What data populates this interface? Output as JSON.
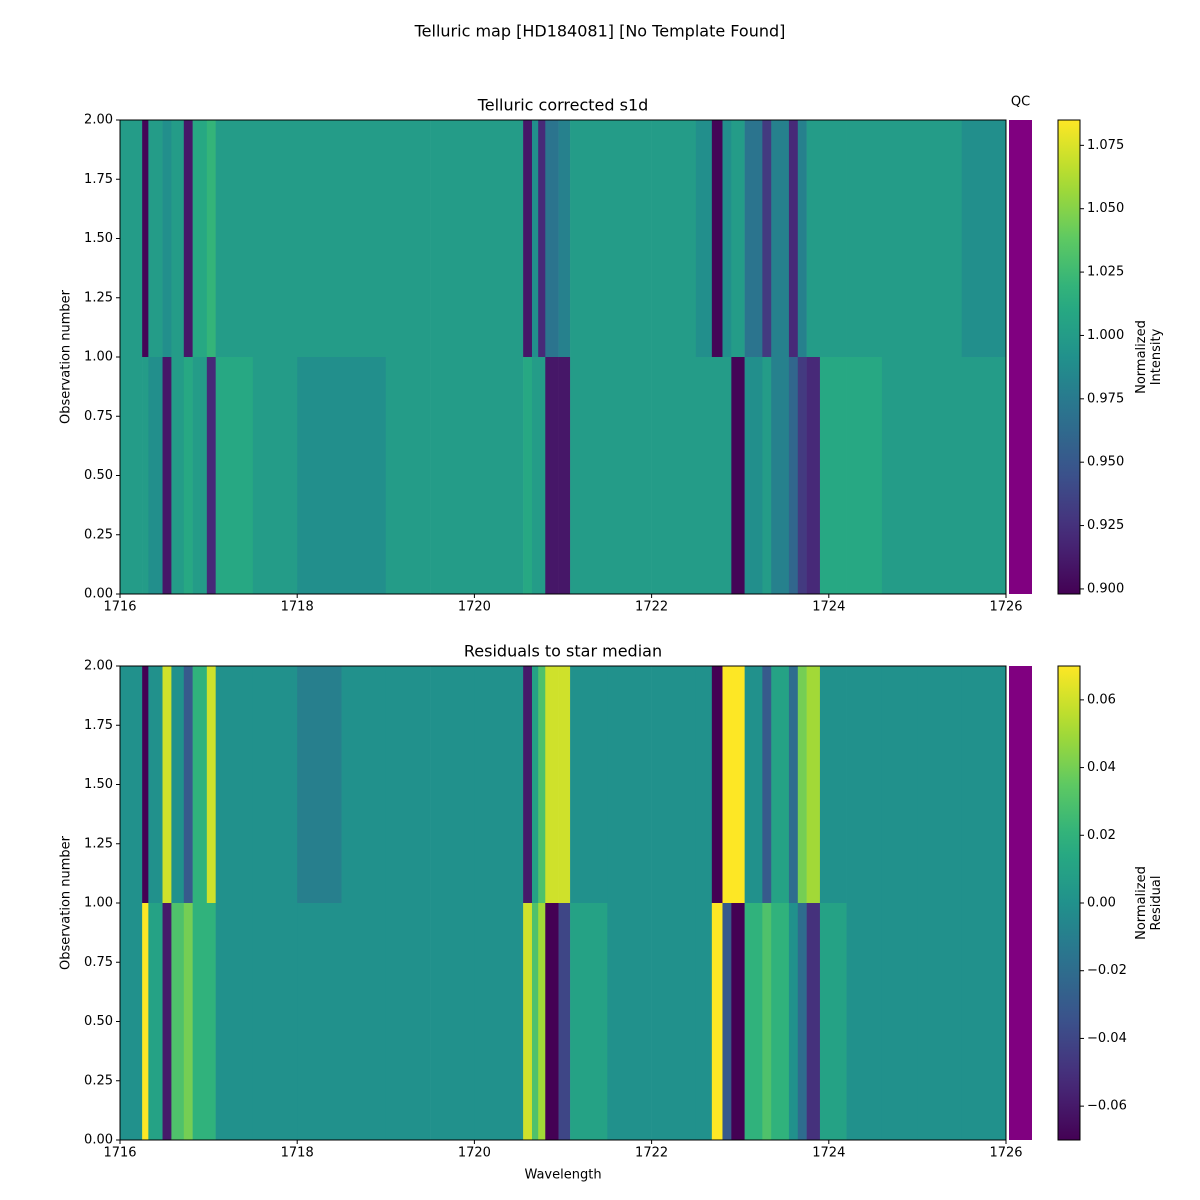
{
  "title": "Telluric map [HD184081] [No Template Found]",
  "chart_data": [
    {
      "type": "heatmap",
      "title": "Telluric corrected s1d",
      "ylabel": "Observation number",
      "qc_label": "QC",
      "qc_color": "#800080",
      "xlim": [
        1716,
        1726
      ],
      "xticks": [
        1716,
        1718,
        1720,
        1722,
        1724,
        1726
      ],
      "ylim": [
        0,
        2
      ],
      "yticks": [
        {
          "value": 0,
          "label": "0.00"
        },
        {
          "value": 0.25,
          "label": "0.25"
        },
        {
          "value": 0.5,
          "label": "0.50"
        },
        {
          "value": 0.75,
          "label": "0.75"
        },
        {
          "value": 1,
          "label": "1.00"
        },
        {
          "value": 1.25,
          "label": "1.25"
        },
        {
          "value": 1.5,
          "label": "1.50"
        },
        {
          "value": 1.75,
          "label": "1.75"
        },
        {
          "value": 2,
          "label": "2.00"
        }
      ],
      "xbins": [
        1716,
        1716.25,
        1716.32,
        1716.48,
        1716.58,
        1716.72,
        1716.82,
        1716.98,
        1717.08,
        1717.5,
        1718,
        1718.5,
        1719,
        1719.5,
        1720,
        1720.55,
        1720.65,
        1720.72,
        1720.8,
        1720.95,
        1721.08,
        1721.5,
        1722,
        1722.5,
        1722.68,
        1722.8,
        1722.9,
        1723.05,
        1723.25,
        1723.35,
        1723.55,
        1723.65,
        1723.75,
        1723.9,
        1724.2,
        1724.6,
        1725,
        1725.5,
        1726
      ],
      "ybins": [
        0,
        1,
        2
      ],
      "values": [
        [
          1.0,
          1.0,
          0.99,
          0.91,
          1.0,
          1.01,
          1.0,
          0.92,
          1.01,
          1.0,
          0.99,
          0.99,
          1.0,
          1.0,
          1.0,
          1.01,
          1.0,
          1.0,
          0.91,
          0.91,
          1.0,
          1.0,
          1.0,
          1.0,
          1.0,
          1.0,
          0.9,
          0.99,
          1.0,
          0.98,
          0.96,
          0.93,
          0.92,
          1.01,
          1.01,
          1.0,
          1.0,
          1.0
        ],
        [
          1.0,
          0.9,
          1.0,
          0.99,
          1.0,
          0.91,
          1.01,
          1.02,
          1.0,
          1.0,
          1.0,
          1.0,
          1.0,
          1.0,
          1.0,
          0.91,
          0.99,
          0.92,
          0.97,
          0.98,
          1.0,
          1.0,
          1.0,
          0.99,
          0.9,
          0.99,
          1.0,
          0.97,
          0.93,
          0.98,
          0.92,
          0.98,
          1.0,
          1.0,
          1.0,
          1.0,
          1.0,
          0.99
        ]
      ],
      "colormap": "viridis",
      "clim": [
        0.898,
        1.085
      ],
      "cticks": [
        {
          "value": 0.9,
          "label": "0.900"
        },
        {
          "value": 0.925,
          "label": "0.925"
        },
        {
          "value": 0.95,
          "label": "0.950"
        },
        {
          "value": 0.975,
          "label": "0.975"
        },
        {
          "value": 1.0,
          "label": "1.000"
        },
        {
          "value": 1.025,
          "label": "1.025"
        },
        {
          "value": 1.05,
          "label": "1.050"
        },
        {
          "value": 1.075,
          "label": "1.075"
        }
      ],
      "colorbar_label": [
        "Normalized",
        "Intensity"
      ]
    },
    {
      "type": "heatmap",
      "title": "Residuals to star median",
      "ylabel": "Observation number",
      "xlabel": "Wavelength",
      "qc_color": "#800080",
      "xlim": [
        1716,
        1726
      ],
      "xticks": [
        1716,
        1718,
        1720,
        1722,
        1724,
        1726
      ],
      "ylim": [
        0,
        2
      ],
      "yticks": [
        {
          "value": 0,
          "label": "0.00"
        },
        {
          "value": 0.25,
          "label": "0.25"
        },
        {
          "value": 0.5,
          "label": "0.50"
        },
        {
          "value": 0.75,
          "label": "0.75"
        },
        {
          "value": 1,
          "label": "1.00"
        },
        {
          "value": 1.25,
          "label": "1.25"
        },
        {
          "value": 1.5,
          "label": "1.50"
        },
        {
          "value": 1.75,
          "label": "1.75"
        },
        {
          "value": 2,
          "label": "2.00"
        }
      ],
      "xbins": [
        1716,
        1716.25,
        1716.32,
        1716.48,
        1716.58,
        1716.72,
        1716.82,
        1716.98,
        1717.08,
        1717.5,
        1718,
        1718.5,
        1719,
        1719.5,
        1720,
        1720.55,
        1720.65,
        1720.72,
        1720.8,
        1720.95,
        1721.08,
        1721.5,
        1722,
        1722.5,
        1722.68,
        1722.8,
        1722.9,
        1723.05,
        1723.25,
        1723.35,
        1723.55,
        1723.65,
        1723.75,
        1723.9,
        1724.2,
        1724.6,
        1725,
        1725.5,
        1726
      ],
      "ybins": [
        0,
        1,
        2
      ],
      "values": [
        [
          0,
          0.07,
          0.01,
          -0.06,
          0.03,
          0.04,
          0.02,
          0.02,
          0,
          0,
          0,
          0,
          0,
          0,
          0,
          0.06,
          0.03,
          0.05,
          -0.07,
          -0.04,
          0.01,
          0,
          0,
          0,
          0.07,
          -0.03,
          -0.07,
          0.02,
          0.03,
          0.02,
          0,
          -0.02,
          -0.05,
          0.01,
          0,
          0,
          0,
          0
        ],
        [
          0,
          -0.07,
          0,
          0.06,
          0,
          -0.03,
          0.02,
          0.06,
          0,
          0,
          -0.01,
          0,
          0,
          0,
          0,
          -0.06,
          0.01,
          0.03,
          0.06,
          0.06,
          0,
          0,
          0,
          0,
          -0.07,
          0.07,
          0.07,
          0,
          -0.03,
          0.01,
          -0.02,
          0.04,
          0.05,
          0,
          0,
          0,
          0,
          0
        ]
      ],
      "colormap": "viridis",
      "clim": [
        -0.07,
        0.07
      ],
      "cticks": [
        {
          "value": -0.06,
          "label": "−0.06"
        },
        {
          "value": -0.04,
          "label": "−0.04"
        },
        {
          "value": -0.02,
          "label": "−0.02"
        },
        {
          "value": 0,
          "label": "0.00"
        },
        {
          "value": 0.02,
          "label": "0.02"
        },
        {
          "value": 0.04,
          "label": "0.04"
        },
        {
          "value": 0.06,
          "label": "0.06"
        }
      ],
      "colorbar_label": [
        "Normalized",
        "Residual"
      ]
    }
  ]
}
